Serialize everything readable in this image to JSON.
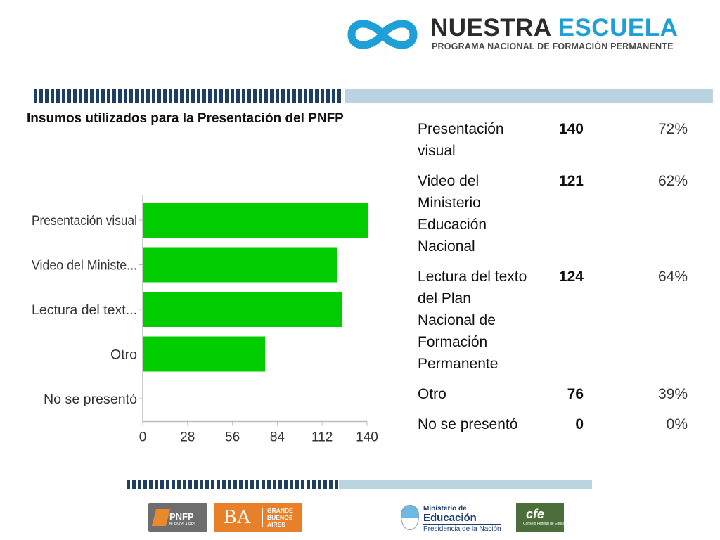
{
  "header": {
    "logo_word1": "NUESTRA",
    "logo_word2": "ESCUELA",
    "logo_subtitle": "PROGRAMA NACIONAL DE FORMACIÓN PERMANENTE"
  },
  "colors": {
    "bar": "#00cc00",
    "logo_accent": "#1e9fd8",
    "stripe_dark": "#1f3e66",
    "stripe_light": "#b9d3e0"
  },
  "chart_title": "Insumos utilizados para la Presentación del PNFP",
  "chart_data": {
    "type": "bar",
    "orientation": "horizontal",
    "title": "Insumos utilizados para la Presentación del PNFP",
    "categories": [
      "Presentación visual",
      "Video del Ministe...",
      "Lectura del  text...",
      "Otro",
      "No se presentó"
    ],
    "values": [
      140,
      121,
      124,
      76,
      0
    ],
    "xlim": [
      0,
      140
    ],
    "xticks": [
      0,
      28,
      56,
      84,
      112,
      140
    ],
    "xlabel": "",
    "ylabel": "",
    "grid": false,
    "legend": "none"
  },
  "table": {
    "rows": [
      {
        "category": "Presentación visual",
        "count": "140",
        "percent": "72%"
      },
      {
        "category": "Video del Ministerio Educación Nacional",
        "count": "121",
        "percent": "62%"
      },
      {
        "category": "Lectura del  texto del Plan Nacional de Formación Permanente",
        "count": "124",
        "percent": "64%"
      },
      {
        "category": "Otro",
        "count": "76",
        "percent": "39%"
      },
      {
        "category": "No se presentó",
        "count": "0",
        "percent": "0%"
      }
    ]
  },
  "footer": {
    "pnfp_label": "PNFP",
    "pnfp_sub": "BUENOS AIRES",
    "ba_label": "BA",
    "ba_sub": "GRANDE\nBUENOS\nAIRES",
    "ministerio_line1": "Ministerio de",
    "ministerio_line2": "Educación",
    "ministerio_line3": "Presidencia de la Nación",
    "cfe_label": "cfe",
    "cfe_sub": "Consejo Federal de Educación"
  }
}
